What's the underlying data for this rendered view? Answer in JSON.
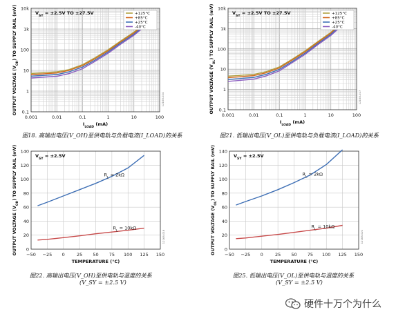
{
  "charts": [
    {
      "id": "fig18",
      "caption": "图18. 高输出电压(V_OH)至供电轨与负载电流(I_LOAD)的关系",
      "caption_line2": "",
      "chart_data": {
        "type": "line",
        "xscale": "log",
        "yscale": "log",
        "xlim": [
          0.001,
          100
        ],
        "ylim": [
          0.1,
          10000
        ],
        "xticks": [
          "0.001",
          "0.01",
          "0.1",
          "1",
          "10",
          "100"
        ],
        "yticks": [
          "0.1",
          "1",
          "10",
          "100",
          "1k",
          "10k"
        ],
        "xlabel": "I_LOAD (mA)",
        "ylabel": "OUTPUT VOLTAGE (V_OH) TO SUPPLY RAIL (mV)",
        "annotation": "V_SY = ±2.5V TO ±27.5V",
        "legend_position": "top-right",
        "side_code": "12168-024",
        "series": [
          {
            "name": "+125°C",
            "color": "#b0a040",
            "x": [
              0.001,
              0.01,
              0.03,
              0.1,
              0.3,
              1,
              3,
              10,
              20,
              30
            ],
            "y": [
              7.0,
              8.5,
              11,
              19,
              40,
              100,
              260,
              700,
              1400,
              2200
            ]
          },
          {
            "name": "+85°C",
            "color": "#d2691e",
            "x": [
              0.001,
              0.01,
              0.03,
              0.1,
              0.3,
              1,
              3,
              10,
              20,
              30
            ],
            "y": [
              6.2,
              7.5,
              10,
              17,
              36,
              90,
              235,
              640,
              1280,
              2000
            ]
          },
          {
            "name": "+25°C",
            "color": "#3e6fb5",
            "x": [
              0.001,
              0.01,
              0.03,
              0.1,
              0.3,
              1,
              3,
              10,
              20,
              35
            ],
            "y": [
              5.3,
              6.3,
              8.5,
              14.5,
              31,
              78,
              205,
              560,
              1130,
              2300
            ]
          },
          {
            "name": "-40°C",
            "color": "#8a5cc0",
            "x": [
              0.001,
              0.01,
              0.03,
              0.1,
              0.3,
              1,
              3,
              10,
              20,
              40
            ],
            "y": [
              4.3,
              5.2,
              7.0,
              12,
              27,
              68,
              180,
              500,
              1000,
              2400
            ]
          }
        ]
      }
    },
    {
      "id": "fig21",
      "caption": "图21. 低输出电压(V_OL)至供电轨与负载电流(I_LOAD)的关系",
      "caption_line2": "",
      "chart_data": {
        "type": "line",
        "xscale": "log",
        "yscale": "log",
        "xlim": [
          0.001,
          100
        ],
        "ylim": [
          0.1,
          10000
        ],
        "xticks": [
          "0.001",
          "0.01",
          "0.1",
          "1",
          "10",
          "100"
        ],
        "yticks": [
          "0.1",
          "1",
          "10",
          "100",
          "1k",
          "10k"
        ],
        "xlabel": "I_LOAD (mA)",
        "ylabel": "OUTPUT VOLTAGE (V_OL) TO SUPPLY RAIL (mV)",
        "annotation": "V_SY = ±2.5V TO ±27.5V",
        "legend_position": "top-right",
        "side_code": "12168-027",
        "series": [
          {
            "name": "+125°C",
            "color": "#b0a040",
            "x": [
              0.001,
              0.01,
              0.03,
              0.1,
              0.3,
              1,
              3,
              10,
              20
            ],
            "y": [
              4.5,
              5.5,
              7.5,
              13,
              30,
              80,
              220,
              650,
              1500
            ]
          },
          {
            "name": "+85°C",
            "color": "#d2691e",
            "x": [
              0.001,
              0.01,
              0.03,
              0.1,
              0.3,
              1,
              3,
              10,
              20
            ],
            "y": [
              3.8,
              4.8,
              6.6,
              11.5,
              27,
              72,
              200,
              600,
              1350
            ]
          },
          {
            "name": "+25°C",
            "color": "#3e6fb5",
            "x": [
              0.001,
              0.01,
              0.03,
              0.1,
              0.3,
              1,
              3,
              10,
              25
            ],
            "y": [
              3.1,
              3.9,
              5.5,
              9.8,
              23,
              62,
              175,
              520,
              1500
            ]
          },
          {
            "name": "-40°C",
            "color": "#8a5cc0",
            "x": [
              0.001,
              0.01,
              0.03,
              0.1,
              0.3,
              1,
              3,
              10,
              25
            ],
            "y": [
              2.5,
              3.2,
              4.6,
              8.3,
              20,
              54,
              155,
              460,
              1300
            ]
          }
        ]
      }
    },
    {
      "id": "fig22",
      "caption": "图22. 高输出电压(V_OH)至供电轨与温度的关系",
      "caption_line2": "(V_SY = ±2.5 V)",
      "chart_data": {
        "type": "line",
        "xlim": [
          -50,
          150
        ],
        "ylim": [
          0,
          140
        ],
        "xticks": [
          "−50",
          "−25",
          "0",
          "25",
          "50",
          "75",
          "100",
          "125",
          "150"
        ],
        "yticks": [
          "0",
          "20",
          "40",
          "60",
          "80",
          "100",
          "120",
          "140"
        ],
        "xlabel": "TEMPERATURE (°C)",
        "ylabel": "OUTPUT VOLTAGE (V_OH) TO SUPPLY RAIL (mV)",
        "annotation": "V_SY = ±2.5V",
        "side_code": "12168-018",
        "series": [
          {
            "name": "R_L = 2kΩ",
            "color": "#3e6fb5",
            "x": [
              -40,
              -25,
              0,
              25,
              50,
              75,
              100,
              125
            ],
            "y": [
              62,
              67,
              76,
              85,
              94,
              104,
              116,
              134
            ]
          },
          {
            "name": "R_L = 10kΩ",
            "color": "#c84a4a",
            "x": [
              -40,
              -25,
              0,
              25,
              50,
              75,
              100,
              125
            ],
            "y": [
              13,
              14,
              16.5,
              19,
              22,
              24.5,
              27,
              30
            ]
          }
        ]
      }
    },
    {
      "id": "fig25",
      "caption": "图25. 低输出电压(V_OL)至供电轨与温度的关系",
      "caption_line2": "(V_SY = ±2.5 V)",
      "chart_data": {
        "type": "line",
        "xlim": [
          -50,
          150
        ],
        "ylim": [
          0,
          140
        ],
        "xticks": [
          "−50",
          "−25",
          "0",
          "25",
          "50",
          "75",
          "100",
          "125",
          "150"
        ],
        "yticks": [
          "0",
          "20",
          "40",
          "60",
          "80",
          "100",
          "120",
          "140"
        ],
        "xlabel": "TEMPERATURE (°C)",
        "ylabel": "OUTPUT VOLTAGE (V_OL) TO SUPPLY RAIL (mV)",
        "annotation": "V_SY = ±2.5V",
        "side_code": "12168-021",
        "series": [
          {
            "name": "R_L = 2kΩ",
            "color": "#3e6fb5",
            "x": [
              -40,
              -25,
              0,
              25,
              50,
              75,
              100,
              125
            ],
            "y": [
              63,
              68,
              76,
              85,
              95,
              106,
              121,
              142
            ]
          },
          {
            "name": "R_L = 10kΩ",
            "color": "#c84a4a",
            "x": [
              -40,
              -25,
              0,
              25,
              50,
              75,
              100,
              125
            ],
            "y": [
              15,
              16,
              18.5,
              21,
              24,
              27,
              30,
              34
            ]
          }
        ]
      }
    }
  ],
  "watermark": {
    "text": "硬件十万个为什么",
    "icon": "wechat-icon"
  }
}
